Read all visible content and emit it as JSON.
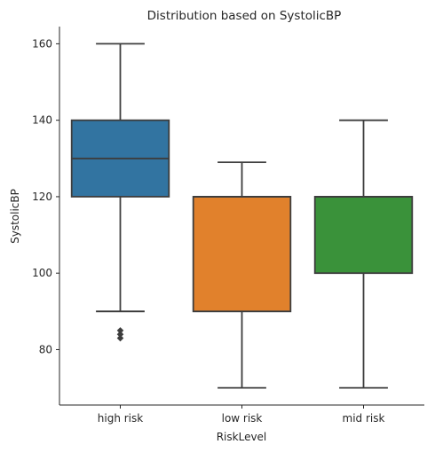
{
  "chart_data": {
    "type": "box",
    "title": "Distribution based on SystolicBP",
    "xlabel": "RiskLevel",
    "ylabel": "SystolicBP",
    "ylim": [
      65.5,
      164.5
    ],
    "yticks": [
      80,
      100,
      120,
      140,
      160
    ],
    "grid": false,
    "legend": "none",
    "categories": [
      "high risk",
      "low risk",
      "mid risk"
    ],
    "boxes": [
      {
        "category": "high risk",
        "whisker_low": 90,
        "q1": 120,
        "median": 130,
        "q3": 140,
        "whisker_high": 160,
        "outliers": [
          83,
          84,
          85
        ],
        "color": "#3274a1"
      },
      {
        "category": "low risk",
        "whisker_low": 70,
        "q1": 90,
        "median": 120,
        "q3": 120,
        "whisker_high": 129,
        "outliers": [],
        "color": "#e1812c"
      },
      {
        "category": "mid risk",
        "whisker_low": 70,
        "q1": 100,
        "median": 120,
        "q3": 120,
        "whisker_high": 140,
        "outliers": [],
        "color": "#3a923a"
      }
    ]
  }
}
